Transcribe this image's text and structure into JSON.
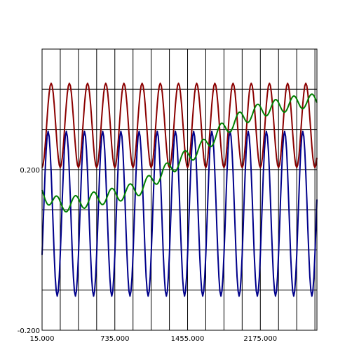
{
  "chart_data": {
    "type": "line",
    "title": "",
    "xlabel": "",
    "ylabel": "",
    "xlim": [
      15.0,
      2735.0
    ],
    "ylim": [
      -0.2,
      0.5
    ],
    "x_ticks": [
      15.0,
      735.0,
      1455.0,
      2175.0
    ],
    "x_tick_labels": [
      "15.000",
      "735.000",
      "1455.000",
      "2175.000"
    ],
    "y_ticks": [
      -0.2,
      0.2
    ],
    "y_tick_labels": [
      "-0.200",
      "0.200"
    ],
    "x_grid_step": 180.0,
    "y_grid_step": 0.1,
    "grid": true,
    "legend": "none",
    "series": [
      {
        "color": "#8b0000",
        "wave": {
          "offset": 0.31,
          "amplitude": 0.105,
          "period": 180.0,
          "peak_x": 285.0,
          "x_start": 15.0,
          "x_end": 2735.0,
          "step": 10.0
        },
        "values": [
          0.207,
          0.212,
          0.228,
          0.252,
          0.283,
          0.316,
          0.349,
          0.378,
          0.399,
          0.413,
          0.415,
          0.407,
          0.389,
          0.363,
          0.331,
          0.297,
          0.264,
          0.237,
          0.218,
          0.207
        ]
      },
      {
        "color": "#00008b",
        "wave": {
          "offset": 0.09,
          "amplitude": 0.205,
          "period": 180.0,
          "peak_x": 255.0,
          "x_start": 15.0,
          "x_end": 2735.0,
          "step": 10.0
        },
        "values": [
          -0.115,
          -0.108,
          -0.076,
          -0.025,
          0.038,
          0.104,
          0.166,
          0.216,
          0.252,
          0.27,
          0.295,
          0.287,
          0.252,
          0.2,
          0.135,
          0.068,
          0.005,
          -0.05,
          -0.09,
          -0.112
        ]
      },
      {
        "color": "#008000",
        "wave": {
          "offset": 0.0,
          "amplitude": 0.018,
          "period": 180.0,
          "peak_x": 345.0,
          "x_start": 15.0,
          "x_end": 2735.0,
          "step": 10.0
        },
        "anchors": {
          "x": [
            15.0,
            200.0,
            400.0,
            600.0,
            800.0,
            1000.0,
            1200.0,
            1400.0,
            1600.0,
            1800.0,
            2000.0,
            2200.0,
            2400.0,
            2600.0,
            2735.0
          ],
          "y": [
            0.14,
            0.11,
            0.12,
            0.13,
            0.14,
            0.155,
            0.19,
            0.225,
            0.255,
            0.3,
            0.33,
            0.35,
            0.36,
            0.37,
            0.37
          ]
        }
      }
    ]
  }
}
